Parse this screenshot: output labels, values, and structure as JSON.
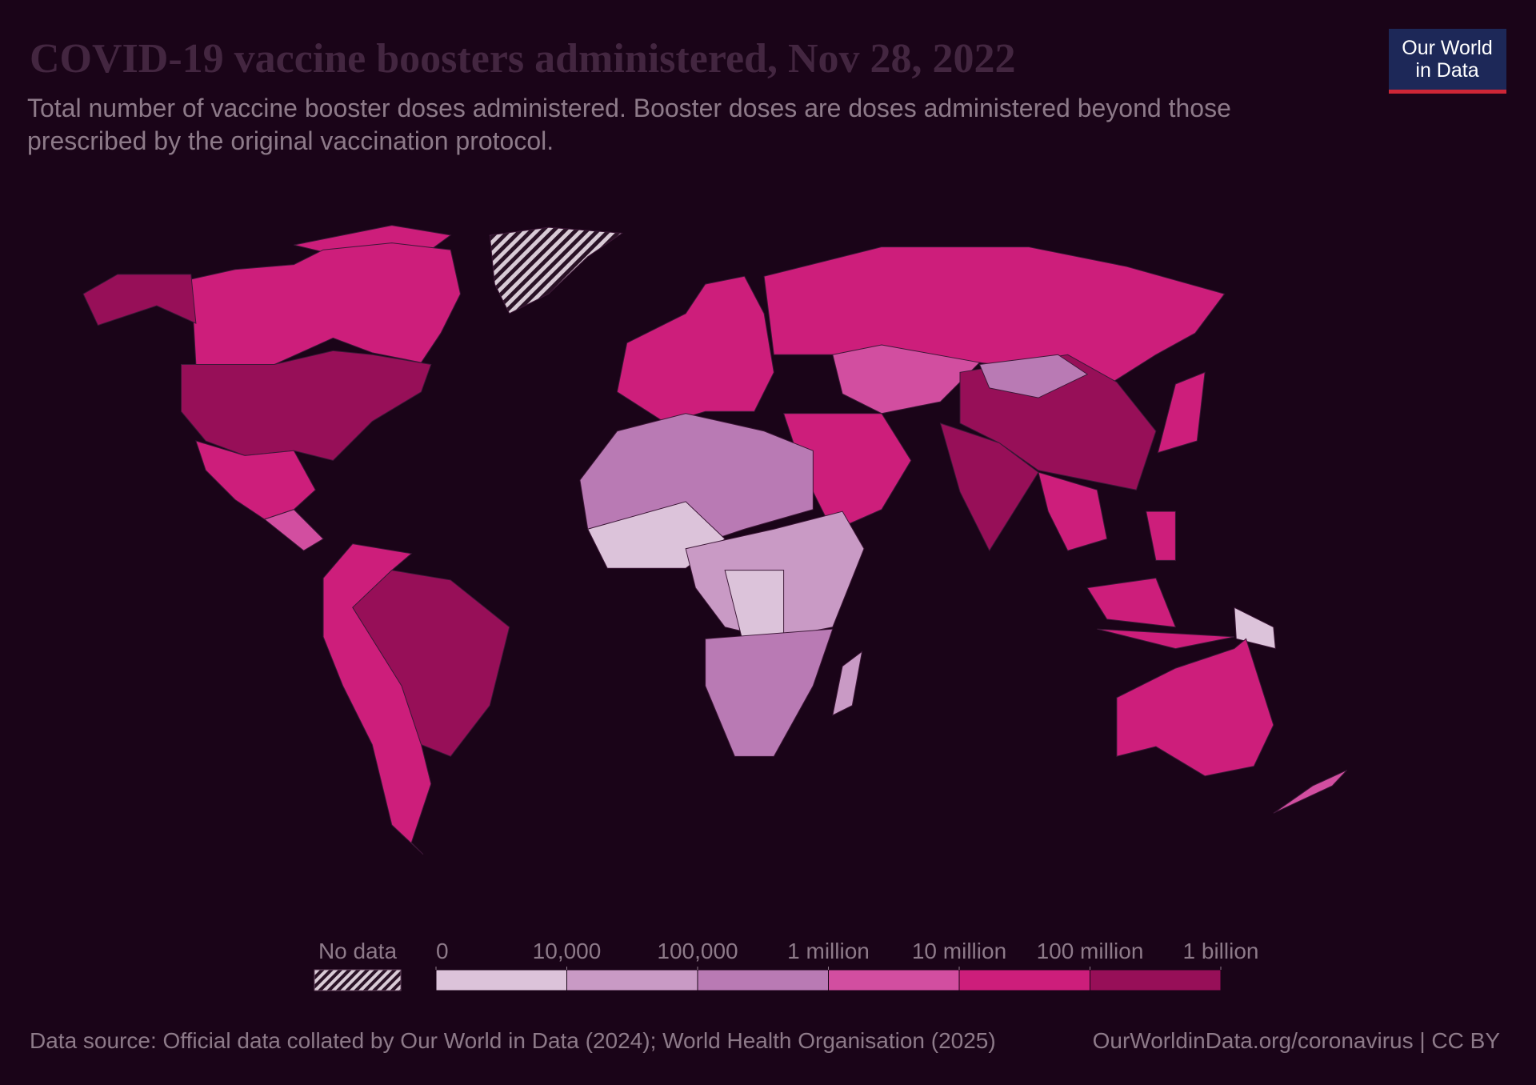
{
  "chart_data": {
    "type": "choropleth",
    "title": "COVID-19 vaccine boosters administered, Nov 28, 2022",
    "subtitle": "Total number of vaccine booster doses administered. Booster doses are doses administered beyond those prescribed by the original vaccination protocol.",
    "legend": {
      "no_data_label": "No data",
      "ticks": [
        0,
        {
          "value": 10000,
          "label": "10,000"
        },
        {
          "value": 100000,
          "label": "100,000"
        },
        {
          "value": 1000000,
          "label": "1 million"
        },
        {
          "value": 10000000,
          "label": "10 million"
        },
        {
          "value": 100000000,
          "label": "100 million"
        },
        {
          "value": 1000000000,
          "label": "1 billion"
        }
      ],
      "colors": [
        "#dcc3da",
        "#c99ac5",
        "#b97ab4",
        "#d24ea0",
        "#cd1e7b",
        "#970f58"
      ]
    }
  },
  "footer": {
    "source": "Data source: Official data collated by Our World in Data (2024); World Health Organisation (2025)",
    "link": "OurWorldinData.org/coronavirus | CC BY"
  },
  "logo": {
    "line1": "Our World",
    "line2": "in Data"
  }
}
